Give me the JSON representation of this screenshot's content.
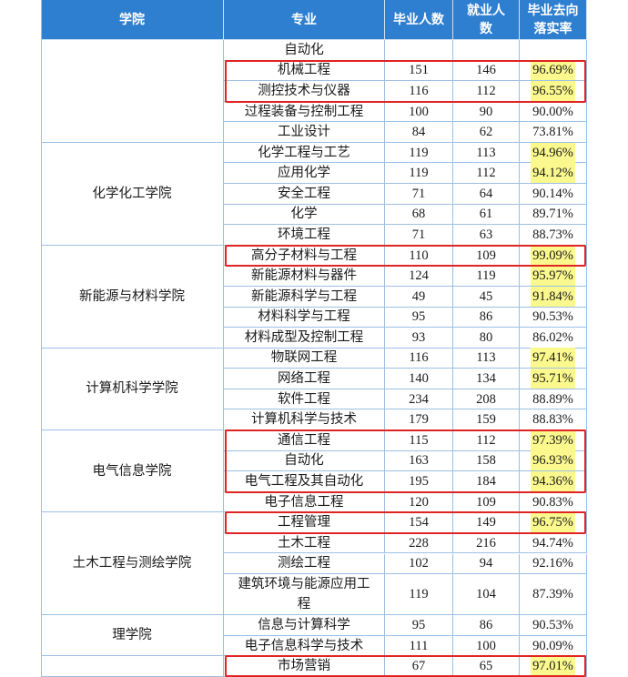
{
  "header": [
    "学院",
    "专业",
    "毕业人数",
    "就业人数",
    "毕业去向落实率"
  ],
  "highlight_color": "#fbf98e",
  "box_color": "#e02424",
  "groups": [
    {
      "rows": [
        {
          "major": "自动化"
        },
        {
          "major": "机械工程",
          "graduates": 151,
          "employed": 146,
          "rate": "96.69%",
          "highlight": true,
          "boxed": true
        },
        {
          "major": "测控技术与仪器",
          "graduates": 116,
          "employed": 112,
          "rate": "96.55%",
          "highlight": true,
          "boxed": true
        },
        {
          "major": "过程装备与控制工程",
          "graduates": 100,
          "employed": 90,
          "rate": "90.00%"
        },
        {
          "major": "工业设计",
          "graduates": 84,
          "employed": 62,
          "rate": "73.81%"
        }
      ]
    },
    {
      "college": "化学化工学院",
      "rows": [
        {
          "major": "化学工程与工艺",
          "graduates": 119,
          "employed": 113,
          "rate": "94.96%",
          "highlight": true
        },
        {
          "major": "应用化学",
          "graduates": 119,
          "employed": 112,
          "rate": "94.12%",
          "highlight": true
        },
        {
          "major": "安全工程",
          "graduates": 71,
          "employed": 64,
          "rate": "90.14%"
        },
        {
          "major": "化学",
          "graduates": 68,
          "employed": 61,
          "rate": "89.71%"
        },
        {
          "major": "环境工程",
          "graduates": 71,
          "employed": 63,
          "rate": "88.73%"
        }
      ]
    },
    {
      "college": "新能源与材料学院",
      "rows": [
        {
          "major": "高分子材料与工程",
          "graduates": 110,
          "employed": 109,
          "rate": "99.09%",
          "highlight": true,
          "boxed": true
        },
        {
          "major": "新能源材料与器件",
          "graduates": 124,
          "employed": 119,
          "rate": "95.97%",
          "highlight": true
        },
        {
          "major": "新能源科学与工程",
          "graduates": 49,
          "employed": 45,
          "rate": "91.84%",
          "highlight": true
        },
        {
          "major": "材料科学与工程",
          "graduates": 95,
          "employed": 86,
          "rate": "90.53%"
        },
        {
          "major": "材料成型及控制工程",
          "graduates": 93,
          "employed": 80,
          "rate": "86.02%"
        }
      ]
    },
    {
      "college": "计算机科学学院",
      "rows": [
        {
          "major": "物联网工程",
          "graduates": 116,
          "employed": 113,
          "rate": "97.41%",
          "highlight": true
        },
        {
          "major": "网络工程",
          "graduates": 140,
          "employed": 134,
          "rate": "95.71%",
          "highlight": true
        },
        {
          "major": "软件工程",
          "graduates": 234,
          "employed": 208,
          "rate": "88.89%"
        },
        {
          "major": "计算机科学与技术",
          "graduates": 179,
          "employed": 159,
          "rate": "88.83%"
        }
      ]
    },
    {
      "college": "电气信息学院",
      "rows": [
        {
          "major": "通信工程",
          "graduates": 115,
          "employed": 112,
          "rate": "97.39%",
          "highlight": true,
          "boxed": true
        },
        {
          "major": "自动化",
          "graduates": 163,
          "employed": 158,
          "rate": "96.93%",
          "highlight": true,
          "boxed": true
        },
        {
          "major": "电气工程及其自动化",
          "graduates": 195,
          "employed": 184,
          "rate": "94.36%",
          "highlight": true,
          "boxed": true
        },
        {
          "major": "电子信息工程",
          "graduates": 120,
          "employed": 109,
          "rate": "90.83%"
        }
      ]
    },
    {
      "college": "土木工程与测绘学院",
      "rows": [
        {
          "major": "工程管理",
          "graduates": 154,
          "employed": 149,
          "rate": "96.75%",
          "highlight": true,
          "boxed": true
        },
        {
          "major": "土木工程",
          "graduates": 228,
          "employed": 216,
          "rate": "94.74%"
        },
        {
          "major": "测绘工程",
          "graduates": 102,
          "employed": 94,
          "rate": "92.16%"
        },
        {
          "major": "建筑环境与能源应用工程",
          "graduates": 119,
          "employed": 104,
          "rate": "87.39%"
        }
      ]
    },
    {
      "college": "理学院",
      "rows": [
        {
          "major": "信息与计算科学",
          "graduates": 95,
          "employed": 86,
          "rate": "90.53%"
        },
        {
          "major": "电子信息科学与技术",
          "graduates": 111,
          "employed": 100,
          "rate": "90.09%"
        }
      ]
    },
    {
      "rows": [
        {
          "major": "市场营销",
          "graduates": 67,
          "employed": 65,
          "rate": "97.01%",
          "highlight": true,
          "boxed": true
        }
      ]
    }
  ]
}
